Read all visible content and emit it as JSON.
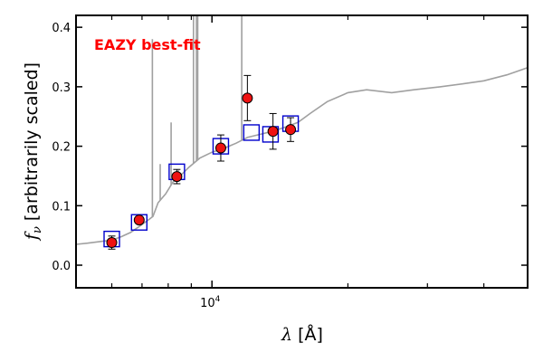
{
  "chart_data": {
    "type": "scatter",
    "annotation": "EAZY best-fit",
    "colors": {
      "annotation": "#ff0000",
      "template": "#a0a0a0",
      "model_box": "#0000cc",
      "observed_face": "#ee1111",
      "observed_edge": "#000000",
      "axes": "#000000"
    },
    "xscale": "log",
    "xlim": [
      5000,
      50000
    ],
    "ylim": [
      -0.038,
      0.42
    ],
    "grid": false,
    "ylabel_symbol": "f",
    "ylabel_subscript": "ν",
    "ylabel_text": " [arbitrarily scaled]",
    "xlabel_symbol": "λ",
    "xlabel_text": " [Å]",
    "xticks": [
      {
        "value": 10000,
        "base": "10",
        "exponent": "4"
      }
    ],
    "yticks": [
      {
        "value": 0.0,
        "label": "0.0"
      },
      {
        "value": 0.1,
        "label": "0.1"
      },
      {
        "value": 0.2,
        "label": "0.2"
      },
      {
        "value": 0.3,
        "label": "0.3"
      },
      {
        "value": 0.4,
        "label": "0.4"
      }
    ],
    "observed": {
      "x": [
        6000,
        6900,
        8360,
        10460,
        11980,
        13650,
        14930
      ],
      "y": [
        0.038,
        0.076,
        0.149,
        0.197,
        0.281,
        0.225,
        0.228
      ],
      "err": [
        0.011,
        0.006,
        0.012,
        0.022,
        0.038,
        0.03,
        0.02
      ]
    },
    "model": {
      "x": [
        6000,
        6900,
        8360,
        10460,
        12230,
        13480,
        14930
      ],
      "y": [
        0.044,
        0.072,
        0.157,
        0.2,
        0.223,
        0.22,
        0.238
      ]
    },
    "template": {
      "continuum": [
        [
          5000,
          0.035
        ],
        [
          5300,
          0.037
        ],
        [
          5700,
          0.04
        ],
        [
          6000,
          0.042
        ],
        [
          6300,
          0.048
        ],
        [
          6600,
          0.055
        ],
        [
          6900,
          0.065
        ],
        [
          7200,
          0.075
        ],
        [
          7400,
          0.082
        ],
        [
          7600,
          0.105
        ],
        [
          7900,
          0.12
        ],
        [
          8200,
          0.14
        ],
        [
          8500,
          0.15
        ],
        [
          8900,
          0.165
        ],
        [
          9400,
          0.18
        ],
        [
          10000,
          0.19
        ],
        [
          10600,
          0.196
        ],
        [
          11300,
          0.205
        ],
        [
          12000,
          0.215
        ],
        [
          12800,
          0.22
        ],
        [
          13600,
          0.225
        ],
        [
          14500,
          0.232
        ],
        [
          15500,
          0.24
        ],
        [
          16500,
          0.255
        ],
        [
          18000,
          0.275
        ],
        [
          20000,
          0.29
        ],
        [
          22000,
          0.295
        ],
        [
          25000,
          0.29
        ],
        [
          28000,
          0.295
        ],
        [
          32000,
          0.3
        ],
        [
          36000,
          0.305
        ],
        [
          40000,
          0.31
        ],
        [
          45000,
          0.32
        ],
        [
          50000,
          0.332
        ]
      ],
      "emission_lines": [
        {
          "x": 7380,
          "peak": 0.38
        },
        {
          "x": 7680,
          "peak": 0.17
        },
        {
          "x": 8120,
          "peak": 0.24
        },
        {
          "x": 8430,
          "peak": 0.16
        },
        {
          "x": 9100,
          "peak": 0.43
        },
        {
          "x": 9240,
          "peak": 0.43
        },
        {
          "x": 9300,
          "peak": 0.43
        },
        {
          "x": 11640,
          "peak": 0.43
        }
      ]
    }
  }
}
